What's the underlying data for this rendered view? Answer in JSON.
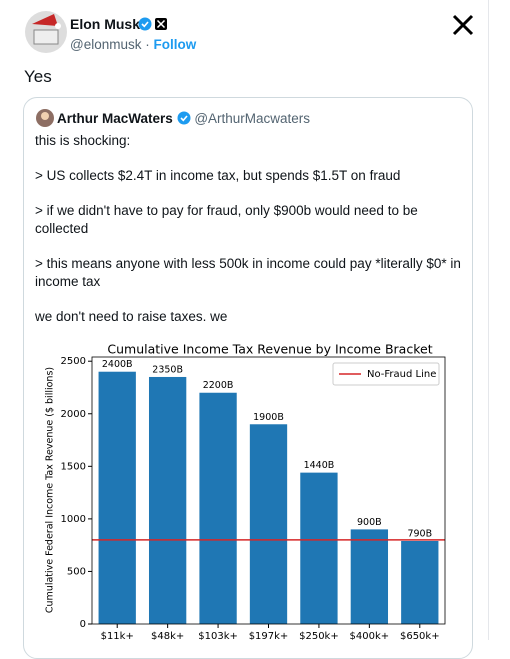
{
  "tweet": {
    "name": "Elon Musk",
    "handle": "@elonmusk",
    "separator": "·",
    "follow": "Follow",
    "text": "Yes"
  },
  "quote": {
    "name": "Arthur MacWaters",
    "handle": "@ArthurMacwaters",
    "paragraphs": [
      "this is shocking:",
      "> US collects $2.4T in income tax, but spends $1.5T on fraud",
      "> if we didn't have to pay for fraud, only $900b would need to be collected",
      "> this means anyone with less 500k in income could pay *literally $0* in income tax",
      "we don't need to raise taxes. we"
    ]
  },
  "chart_data": {
    "type": "bar",
    "title": "Cumulative Income Tax Revenue by Income Bracket",
    "y_label": "Cumulative Federal Income Tax Revenue ($ billions)",
    "categories": [
      "$11k+",
      "$48k+",
      "$103k+",
      "$197k+",
      "$250k+",
      "$400k+",
      "$650k+"
    ],
    "values": [
      2400,
      2350,
      2200,
      1900,
      1440,
      900,
      790
    ],
    "value_labels": [
      "2400B",
      "2350B",
      "2200B",
      "1900B",
      "1440B",
      "900B",
      "790B"
    ],
    "color": "#1f77b4",
    "reference_line": {
      "name": "No-Fraud Line",
      "value": 800,
      "color": "#d62728"
    },
    "legend": "upper right",
    "ylim": [
      0,
      2540
    ],
    "yticks": [
      0,
      500,
      1000,
      1500,
      2000,
      2500
    ]
  }
}
